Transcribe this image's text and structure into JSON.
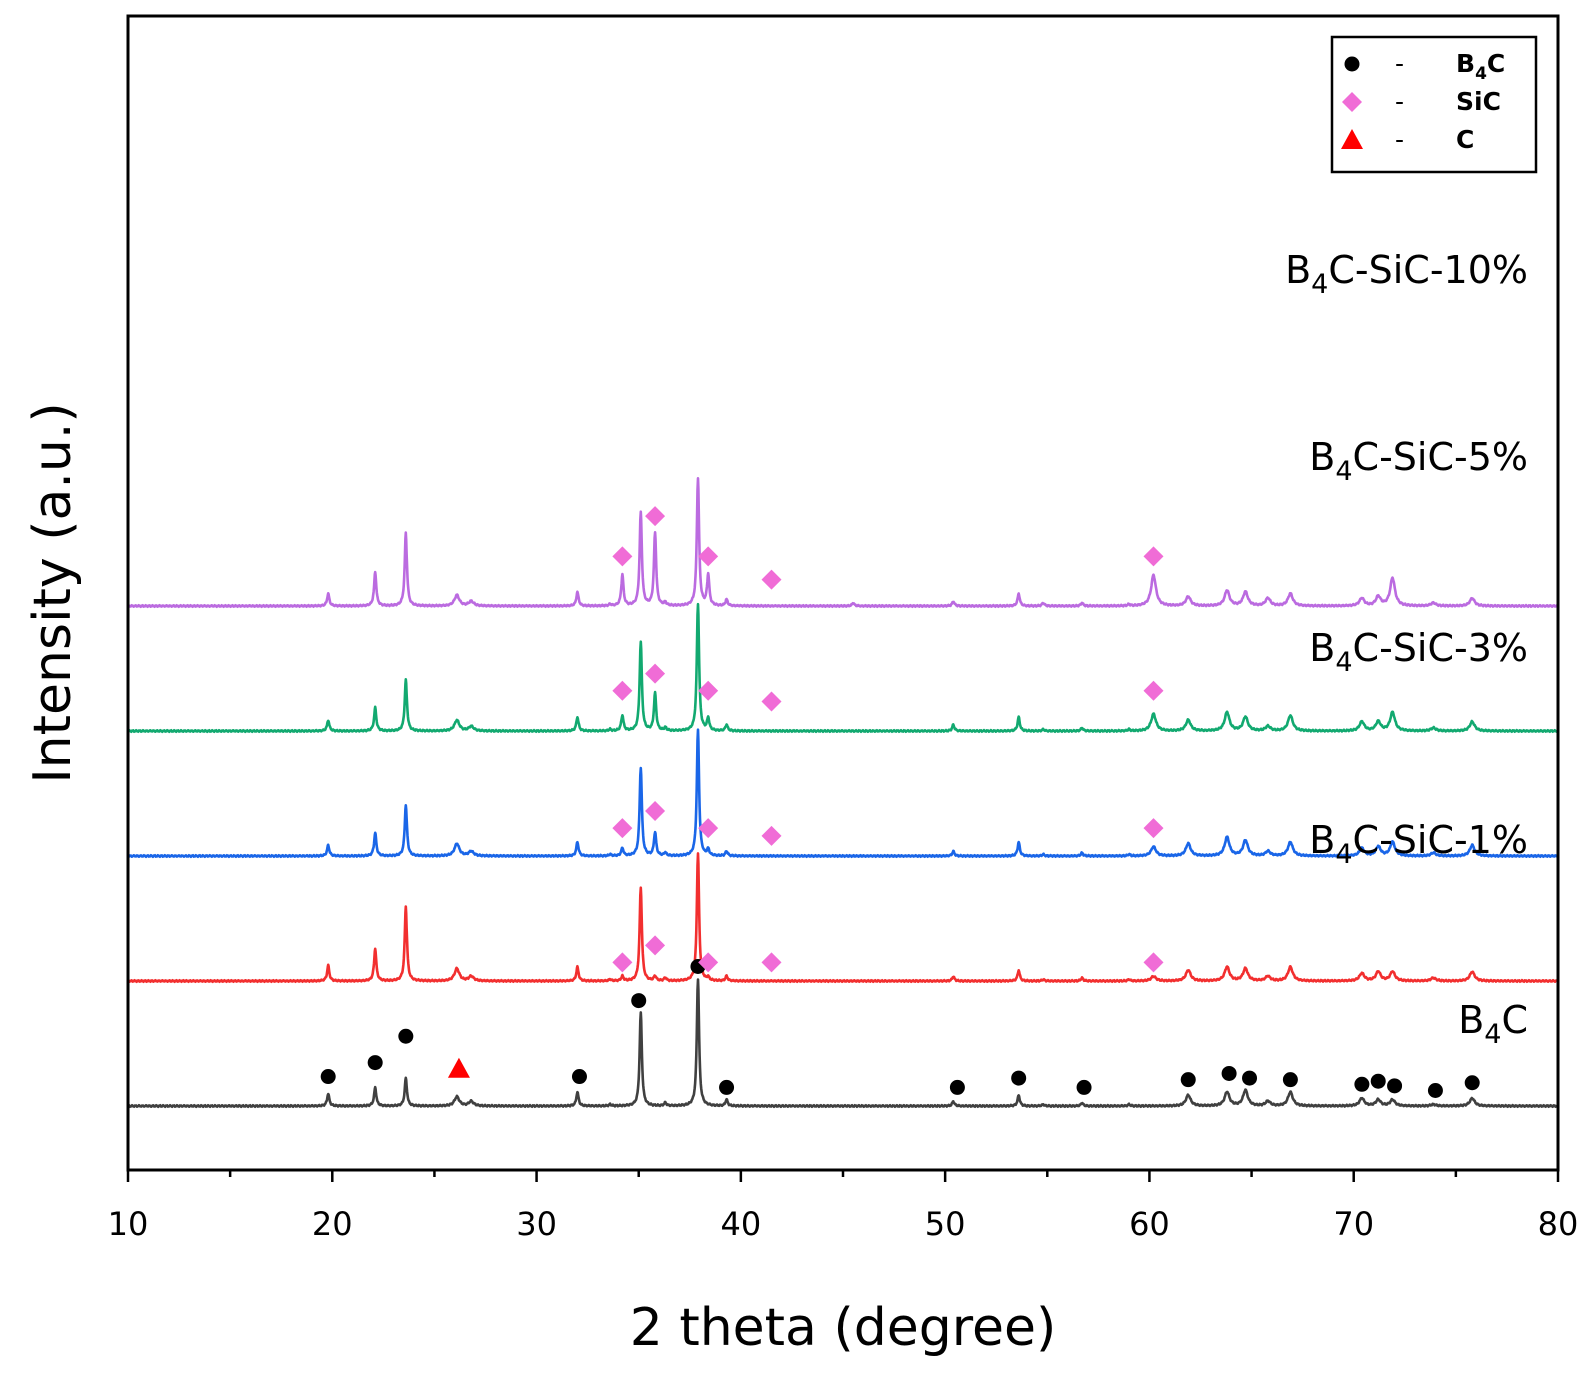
{
  "chart_data": {
    "type": "line",
    "title": "",
    "xlabel": "2 theta (degree)",
    "ylabel": "Intensity (a.u.)",
    "xlim": [
      10,
      80
    ],
    "xticks": [
      10,
      20,
      30,
      40,
      50,
      60,
      70,
      80
    ],
    "legend": {
      "placement": "top-right",
      "entries": [
        {
          "marker": "circle",
          "color": "#000000",
          "dash": "-",
          "base": "B",
          "sub": "4",
          "rest": "C"
        },
        {
          "marker": "diamond",
          "color": "#f06cd6",
          "dash": "-",
          "base": "SiC",
          "sub": "",
          "rest": ""
        },
        {
          "marker": "triangle",
          "color": "#ff0000",
          "dash": "-",
          "base": "C",
          "sub": "",
          "rest": ""
        }
      ]
    },
    "peak_positions": [
      19.8,
      22.1,
      23.6,
      26.1,
      26.8,
      32.0,
      33.6,
      34.2,
      35.1,
      35.8,
      36.3,
      37.9,
      38.4,
      39.3,
      45.5,
      50.4,
      53.6,
      54.8,
      56.7,
      59.0,
      60.2,
      61.9,
      63.8,
      64.7,
      65.8,
      66.9,
      70.4,
      71.2,
      71.9,
      73.9,
      75.8
    ],
    "series": [
      {
        "name": "B4C",
        "label": {
          "base": "B",
          "sub": "4",
          "rest": "C"
        },
        "color": "#404040",
        "offset": 0,
        "intensities": [
          8,
          12,
          18,
          6,
          3,
          9,
          1,
          0,
          60,
          0,
          2,
          82,
          0,
          4,
          0,
          3,
          7,
          1,
          2,
          1,
          0,
          7,
          9,
          10,
          3,
          9,
          5,
          4,
          4,
          1,
          5
        ],
        "markers": [
          {
            "type": "circle",
            "x": 19.8,
            "y": 19
          },
          {
            "type": "circle",
            "x": 22.1,
            "y": 28
          },
          {
            "type": "circle",
            "x": 23.6,
            "y": 45
          },
          {
            "type": "triangle",
            "x": 26.2,
            "y": 24
          },
          {
            "type": "circle",
            "x": 32.1,
            "y": 19
          },
          {
            "type": "circle",
            "x": 35.0,
            "y": 68
          },
          {
            "type": "circle",
            "x": 37.9,
            "y": 90
          },
          {
            "type": "circle",
            "x": 39.3,
            "y": 12
          },
          {
            "type": "circle",
            "x": 50.6,
            "y": 12
          },
          {
            "type": "circle",
            "x": 53.6,
            "y": 18
          },
          {
            "type": "circle",
            "x": 56.8,
            "y": 12
          },
          {
            "type": "circle",
            "x": 61.9,
            "y": 17
          },
          {
            "type": "circle",
            "x": 63.9,
            "y": 21
          },
          {
            "type": "circle",
            "x": 64.9,
            "y": 18
          },
          {
            "type": "circle",
            "x": 66.9,
            "y": 17
          },
          {
            "type": "circle",
            "x": 70.4,
            "y": 14
          },
          {
            "type": "circle",
            "x": 71.2,
            "y": 16
          },
          {
            "type": "circle",
            "x": 72.0,
            "y": 13
          },
          {
            "type": "circle",
            "x": 74.0,
            "y": 10
          },
          {
            "type": "circle",
            "x": 75.8,
            "y": 15
          }
        ]
      },
      {
        "name": "B4C-SiC-1%",
        "label": {
          "base": "B",
          "sub": "4",
          "rest": "C-SiC-1%"
        },
        "color": "#f22f2f",
        "offset": 125,
        "intensities": [
          10,
          21,
          48,
          8,
          3,
          9,
          1,
          3,
          60,
          3,
          2,
          82,
          2,
          3,
          0,
          3,
          7,
          1,
          2,
          1,
          3,
          7,
          9,
          8,
          3,
          9,
          5,
          6,
          6,
          2,
          6
        ],
        "markers": [
          {
            "type": "diamond",
            "x": 34.2,
            "y": 12
          },
          {
            "type": "diamond",
            "x": 35.8,
            "y": 23
          },
          {
            "type": "diamond",
            "x": 38.4,
            "y": 12
          },
          {
            "type": "diamond",
            "x": 41.5,
            "y": 12
          },
          {
            "type": "diamond",
            "x": 60.2,
            "y": 12
          }
        ]
      },
      {
        "name": "B4C-SiC-3%",
        "label": {
          "base": "B",
          "sub": "4",
          "rest": "C-SiC-3%"
        },
        "color": "#1a66e8",
        "offset": 250,
        "intensities": [
          7,
          15,
          33,
          8,
          3,
          9,
          1,
          5,
          57,
          15,
          2,
          81,
          4,
          3,
          0,
          3,
          9,
          1,
          2,
          1,
          6,
          8,
          12,
          10,
          3,
          9,
          5,
          6,
          9,
          2,
          7
        ],
        "markers": [
          {
            "type": "diamond",
            "x": 34.2,
            "y": 18
          },
          {
            "type": "diamond",
            "x": 35.8,
            "y": 29
          },
          {
            "type": "diamond",
            "x": 38.4,
            "y": 18
          },
          {
            "type": "diamond",
            "x": 41.5,
            "y": 13
          },
          {
            "type": "diamond",
            "x": 60.2,
            "y": 18
          }
        ]
      },
      {
        "name": "B4C-SiC-5%",
        "label": {
          "base": "B",
          "sub": "4",
          "rest": "C-SiC-5%"
        },
        "color": "#12a970",
        "offset": 375,
        "intensities": [
          7,
          15,
          33,
          7,
          3,
          9,
          1,
          10,
          57,
          24,
          2,
          82,
          8,
          4,
          0,
          4,
          9,
          1,
          2,
          1,
          11,
          7,
          12,
          9,
          3,
          10,
          6,
          6,
          12,
          2,
          6
        ],
        "markers": [
          {
            "type": "diamond",
            "x": 34.2,
            "y": 26
          },
          {
            "type": "diamond",
            "x": 35.8,
            "y": 37
          },
          {
            "type": "diamond",
            "x": 38.4,
            "y": 26
          },
          {
            "type": "diamond",
            "x": 41.5,
            "y": 19
          },
          {
            "type": "diamond",
            "x": 60.2,
            "y": 26
          }
        ]
      },
      {
        "name": "B4C-SiC-10%",
        "label": {
          "base": "B",
          "sub": "4",
          "rest": "C-SiC-10%"
        },
        "color": "#bb6be0",
        "offset": 500,
        "intensities": [
          8,
          22,
          47,
          7,
          3,
          9,
          1,
          20,
          60,
          47,
          2,
          82,
          20,
          4,
          2,
          3,
          8,
          2,
          2,
          1,
          20,
          6,
          10,
          9,
          5,
          8,
          5,
          6,
          18,
          2,
          5
        ],
        "markers": [
          {
            "type": "diamond",
            "x": 34.2,
            "y": 32
          },
          {
            "type": "diamond",
            "x": 35.8,
            "y": 58
          },
          {
            "type": "diamond",
            "x": 38.4,
            "y": 32
          },
          {
            "type": "diamond",
            "x": 41.5,
            "y": 17
          },
          {
            "type": "diamond",
            "x": 60.2,
            "y": 32
          }
        ]
      }
    ]
  }
}
